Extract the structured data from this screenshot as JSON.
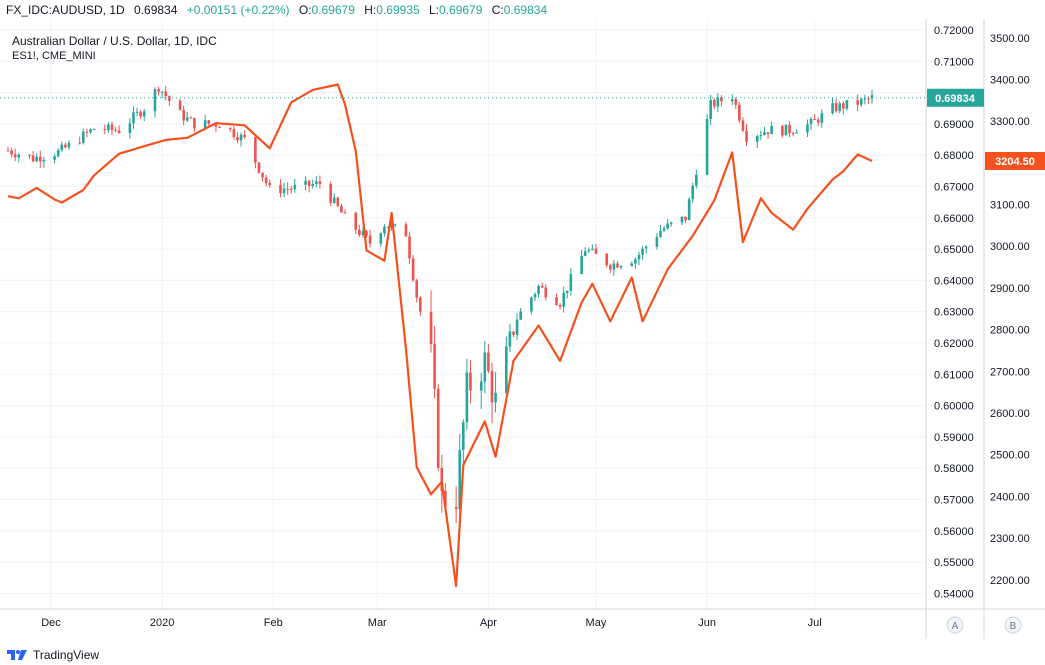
{
  "header": {
    "symbol": "FX_IDC:AUDUSD, 1D",
    "last": "0.69834",
    "change": "+0.00151 (+0.22%)",
    "o_label": "O:",
    "o": "0.69679",
    "h_label": "H:",
    "h": "0.69935",
    "l_label": "L:",
    "l": "0.69679",
    "c_label": "C:",
    "c": "0.69834"
  },
  "legend": {
    "main": "Australian Dollar / U.S. Dollar, 1D, IDC",
    "overlay": "ES1!, CME_MINI"
  },
  "footer": {
    "brand": "TradingView"
  },
  "axis_buttons": {
    "a": "A",
    "b": "B"
  },
  "colors": {
    "up": "#26a69a",
    "down": "#ef5350",
    "overlay": "#f4511e",
    "grid": "#f0f3fa",
    "axis": "#9598a1"
  },
  "chart_data": [
    {
      "type": "candlestick",
      "title": "Australian Dollar / U.S. Dollar, 1D, IDC",
      "series_name": "AUDUSD",
      "axis": "right-inner",
      "ylim": [
        0.535,
        0.7235
      ],
      "y_ticks": [
        "0.72000",
        "0.71000",
        "0.70000",
        "0.69000",
        "0.68000",
        "0.67000",
        "0.66000",
        "0.65000",
        "0.64000",
        "0.63000",
        "0.62000",
        "0.61000",
        "0.60000",
        "0.59000",
        "0.58000",
        "0.57000",
        "0.56000",
        "0.55000",
        "0.54000"
      ],
      "last_value_label": "0.69834",
      "x_labels": [
        "Dec",
        "2020",
        "Feb",
        "Mar",
        "Apr",
        "May",
        "Jun",
        "Jul"
      ],
      "x_dates": [
        "2019-12-01",
        "2020-01-01",
        "2020-02-01",
        "2020-03-01",
        "2020-04-01",
        "2020-05-01",
        "2020-06-01",
        "2020-07-01"
      ],
      "date_range": [
        "2019-11-19",
        "2020-07-17"
      ],
      "grid": true,
      "close_points": [
        [
          "2019-11-19",
          0.6815
        ],
        [
          "2019-11-26",
          0.679
        ],
        [
          "2019-12-03",
          0.681
        ],
        [
          "2019-12-06",
          0.683
        ],
        [
          "2019-12-13",
          0.6885
        ],
        [
          "2019-12-20",
          0.688
        ],
        [
          "2019-12-27",
          0.695
        ],
        [
          "2019-12-31",
          0.702
        ],
        [
          "2020-01-06",
          0.693
        ],
        [
          "2020-01-10",
          0.69
        ],
        [
          "2020-01-17",
          0.69
        ],
        [
          "2020-01-24",
          0.685
        ],
        [
          "2020-01-31",
          0.669
        ],
        [
          "2020-02-07",
          0.6695
        ],
        [
          "2020-02-14",
          0.671
        ],
        [
          "2020-02-21",
          0.66
        ],
        [
          "2020-02-28",
          0.652
        ],
        [
          "2020-03-03",
          0.658
        ],
        [
          "2020-03-09",
          0.655
        ],
        [
          "2020-03-12",
          0.635
        ],
        [
          "2020-03-16",
          0.615
        ],
        [
          "2020-03-19",
          0.57
        ],
        [
          "2020-03-23",
          0.571
        ],
        [
          "2020-03-26",
          0.605
        ],
        [
          "2020-03-31",
          0.614
        ],
        [
          "2020-04-03",
          0.601
        ],
        [
          "2020-04-09",
          0.628
        ],
        [
          "2020-04-15",
          0.638
        ],
        [
          "2020-04-21",
          0.633
        ],
        [
          "2020-04-28",
          0.65
        ],
        [
          "2020-05-05",
          0.645
        ],
        [
          "2020-05-12",
          0.647
        ],
        [
          "2020-05-19",
          0.656
        ],
        [
          "2020-05-26",
          0.66
        ],
        [
          "2020-06-02",
          0.696
        ],
        [
          "2020-06-08",
          0.699
        ],
        [
          "2020-06-12",
          0.686
        ],
        [
          "2020-06-18",
          0.688
        ],
        [
          "2020-06-24",
          0.688
        ],
        [
          "2020-06-30",
          0.69
        ],
        [
          "2020-07-06",
          0.695
        ],
        [
          "2020-07-10",
          0.696
        ],
        [
          "2020-07-14",
          0.697
        ],
        [
          "2020-07-17",
          0.6983
        ]
      ]
    },
    {
      "type": "line",
      "series_name": "ES1!, CME_MINI",
      "axis": "right-outer",
      "ylim": [
        2130,
        3545
      ],
      "y_ticks": [
        "3500.00",
        "3400.00",
        "3300.00",
        "3200.00",
        "3100.00",
        "3000.00",
        "2900.00",
        "2800.00",
        "2700.00",
        "2600.00",
        "2500.00",
        "2400.00",
        "2300.00",
        "2200.00"
      ],
      "last_value_label": "3204.50",
      "points": [
        [
          "2019-11-19",
          3120
        ],
        [
          "2019-11-22",
          3115
        ],
        [
          "2019-11-27",
          3140
        ],
        [
          "2019-12-02",
          3112
        ],
        [
          "2019-12-04",
          3105
        ],
        [
          "2019-12-10",
          3135
        ],
        [
          "2019-12-13",
          3170
        ],
        [
          "2019-12-20",
          3222
        ],
        [
          "2019-12-27",
          3240
        ],
        [
          "2020-01-02",
          3255
        ],
        [
          "2020-01-08",
          3260
        ],
        [
          "2020-01-16",
          3295
        ],
        [
          "2020-01-24",
          3290
        ],
        [
          "2020-01-31",
          3235
        ],
        [
          "2020-02-06",
          3345
        ],
        [
          "2020-02-12",
          3375
        ],
        [
          "2020-02-19",
          3388
        ],
        [
          "2020-02-21",
          3340
        ],
        [
          "2020-02-24",
          3228
        ],
        [
          "2020-02-27",
          2990
        ],
        [
          "2020-03-03",
          2965
        ],
        [
          "2020-03-05",
          3080
        ],
        [
          "2020-03-09",
          2755
        ],
        [
          "2020-03-12",
          2470
        ],
        [
          "2020-03-16",
          2405
        ],
        [
          "2020-03-19",
          2435
        ],
        [
          "2020-03-23",
          2185
        ],
        [
          "2020-03-25",
          2475
        ],
        [
          "2020-03-31",
          2580
        ],
        [
          "2020-04-03",
          2495
        ],
        [
          "2020-04-08",
          2725
        ],
        [
          "2020-04-15",
          2810
        ],
        [
          "2020-04-21",
          2725
        ],
        [
          "2020-04-27",
          2865
        ],
        [
          "2020-04-30",
          2910
        ],
        [
          "2020-05-05",
          2820
        ],
        [
          "2020-05-11",
          2925
        ],
        [
          "2020-05-14",
          2820
        ],
        [
          "2020-05-21",
          2945
        ],
        [
          "2020-05-28",
          3025
        ],
        [
          "2020-06-03",
          3110
        ],
        [
          "2020-06-08",
          3225
        ],
        [
          "2020-06-11",
          3010
        ],
        [
          "2020-06-16",
          3115
        ],
        [
          "2020-06-19",
          3080
        ],
        [
          "2020-06-25",
          3040
        ],
        [
          "2020-06-29",
          3090
        ],
        [
          "2020-07-06",
          3160
        ],
        [
          "2020-07-09",
          3180
        ],
        [
          "2020-07-13",
          3220
        ],
        [
          "2020-07-17",
          3204.5
        ]
      ]
    }
  ]
}
